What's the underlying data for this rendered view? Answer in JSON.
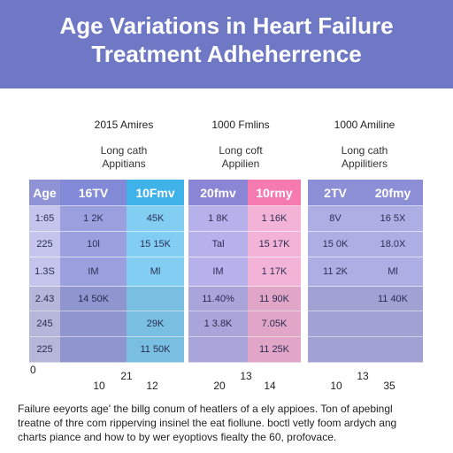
{
  "header": {
    "title": [
      "Age Variations in Heart Failure",
      "Treatment Adheherrence"
    ]
  },
  "groups": [
    {
      "title": "2015 Amires",
      "subtitle": [
        "Long cath",
        "Appitians"
      ]
    },
    {
      "title": "1000 Fmlins",
      "subtitle": [
        "Long coft",
        "Appilien"
      ]
    },
    {
      "title": "1000 Amiline",
      "subtitle": [
        "Long cath",
        "Appilitiers"
      ]
    }
  ],
  "table": {
    "columns": [
      "Age",
      "16TV",
      "10Fmv",
      "20fmv",
      "10rmy",
      "2TV",
      "20fmy"
    ],
    "rows": [
      [
        "1:65",
        "1 2K",
        "45K",
        "1 8K",
        "1 16K",
        "8V",
        "16 5X"
      ],
      [
        "225",
        "10l",
        "15 15K",
        "Tal",
        "15 17K",
        "15 0K",
        "18.0X"
      ],
      [
        "1.3S",
        "IM",
        "Ml",
        "IM",
        "1 17K",
        "11 2K",
        "Ml"
      ],
      [
        "2.43",
        "14 50K",
        "",
        "11.40%",
        "11 90K",
        "",
        "11 40K"
      ],
      [
        "245",
        "",
        "29K",
        "1 3.8K",
        "7.05K",
        "",
        ""
      ],
      [
        "225",
        "",
        "11 50K",
        "",
        "11 25K",
        "",
        ""
      ]
    ]
  },
  "axis": {
    "origin": "0",
    "labels": [
      [
        "10",
        "21",
        "12"
      ],
      [
        "20",
        "13",
        "14"
      ],
      [
        "10",
        "13",
        "35"
      ]
    ]
  },
  "footer": [
    "Failure eeyorts age' the billg conum of heatlers of a ely appioes. Ton of apebingl",
    "treatne of thre com ripperving insinel the eat fiollune. boctl vetly foom ardych ang",
    "charts piance and how to by wer eyoptiovs fiealty the 60, profovace."
  ]
}
